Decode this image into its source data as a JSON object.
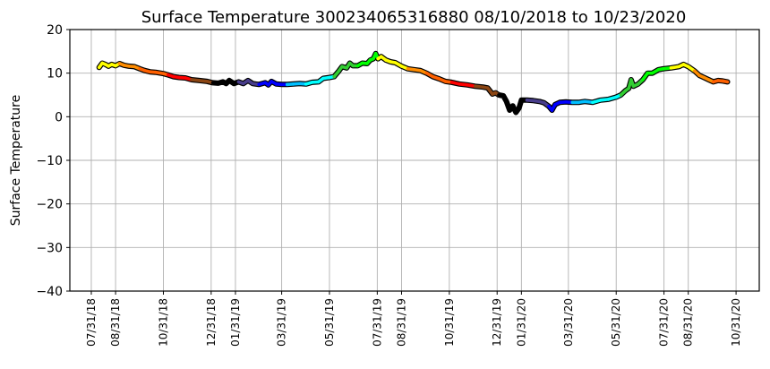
{
  "chart_data": {
    "type": "line",
    "title": "Surface Temperature 300234065316880  08/10/2018 to 10/23/2020",
    "xlabel": "",
    "ylabel": "Surface Temperature",
    "ylim": [
      -40,
      20
    ],
    "yticks": [
      -40,
      -30,
      -20,
      -10,
      0,
      10,
      20
    ],
    "x_units": "days since 07/31/18",
    "xlim": [
      -27.4,
      852.6
    ],
    "xticks": [
      {
        "day": 0,
        "label": "07/31/18"
      },
      {
        "day": 31,
        "label": "08/31/18"
      },
      {
        "day": 92,
        "label": "10/31/18"
      },
      {
        "day": 153,
        "label": "12/31/18"
      },
      {
        "day": 184,
        "label": "01/31/19"
      },
      {
        "day": 243,
        "label": "03/31/19"
      },
      {
        "day": 304,
        "label": "05/31/19"
      },
      {
        "day": 365,
        "label": "07/31/19"
      },
      {
        "day": 396,
        "label": "08/31/19"
      },
      {
        "day": 457,
        "label": "10/31/19"
      },
      {
        "day": 518,
        "label": "12/31/19"
      },
      {
        "day": 549,
        "label": "01/31/20"
      },
      {
        "day": 609,
        "label": "03/31/20"
      },
      {
        "day": 670,
        "label": "05/31/20"
      },
      {
        "day": 731,
        "label": "07/31/20"
      },
      {
        "day": 762,
        "label": "08/31/20"
      },
      {
        "day": 823,
        "label": "10/31/20"
      }
    ],
    "grid": true,
    "month_colors": {
      "1": "#000000",
      "2": "#483d8b",
      "3": "#0000ff",
      "4": "#00bfff",
      "5": "#00ffff",
      "6": "#32cd32",
      "7": "#00ff00",
      "8": "#ffff00",
      "9": "#ff8c00",
      "10": "#ff6000",
      "11": "#ff0000",
      "12": "#8b4513"
    },
    "points": [
      [
        10,
        11.3
      ],
      [
        14,
        12.3
      ],
      [
        18,
        12.0
      ],
      [
        22,
        11.6
      ],
      [
        26,
        12.0
      ],
      [
        31,
        11.7
      ],
      [
        36,
        12.2
      ],
      [
        42,
        11.8
      ],
      [
        48,
        11.6
      ],
      [
        55,
        11.5
      ],
      [
        62,
        11.0
      ],
      [
        68,
        10.6
      ],
      [
        75,
        10.3
      ],
      [
        82,
        10.2
      ],
      [
        92,
        9.9
      ],
      [
        98,
        9.6
      ],
      [
        105,
        9.2
      ],
      [
        112,
        9.0
      ],
      [
        120,
        8.9
      ],
      [
        128,
        8.5
      ],
      [
        138,
        8.3
      ],
      [
        148,
        8.1
      ],
      [
        155,
        7.8
      ],
      [
        162,
        7.7
      ],
      [
        168,
        8.0
      ],
      [
        172,
        7.6
      ],
      [
        176,
        8.3
      ],
      [
        182,
        7.6
      ],
      [
        188,
        8.0
      ],
      [
        194,
        7.6
      ],
      [
        200,
        8.3
      ],
      [
        206,
        7.6
      ],
      [
        214,
        7.4
      ],
      [
        222,
        7.8
      ],
      [
        226,
        7.3
      ],
      [
        230,
        8.1
      ],
      [
        236,
        7.5
      ],
      [
        243,
        7.4
      ],
      [
        250,
        7.4
      ],
      [
        258,
        7.5
      ],
      [
        266,
        7.6
      ],
      [
        274,
        7.5
      ],
      [
        282,
        7.9
      ],
      [
        290,
        8.0
      ],
      [
        296,
        8.8
      ],
      [
        304,
        9.0
      ],
      [
        310,
        9.2
      ],
      [
        316,
        10.5
      ],
      [
        320,
        11.5
      ],
      [
        326,
        11.2
      ],
      [
        330,
        12.3
      ],
      [
        334,
        11.7
      ],
      [
        340,
        11.7
      ],
      [
        346,
        12.3
      ],
      [
        352,
        12.2
      ],
      [
        356,
        13.0
      ],
      [
        360,
        13.3
      ],
      [
        363,
        14.5
      ],
      [
        366,
        13.3
      ],
      [
        370,
        13.8
      ],
      [
        376,
        13.0
      ],
      [
        382,
        12.6
      ],
      [
        388,
        12.4
      ],
      [
        396,
        11.6
      ],
      [
        404,
        11.0
      ],
      [
        412,
        10.8
      ],
      [
        420,
        10.6
      ],
      [
        428,
        10.0
      ],
      [
        436,
        9.2
      ],
      [
        444,
        8.7
      ],
      [
        452,
        8.1
      ],
      [
        460,
        7.9
      ],
      [
        470,
        7.5
      ],
      [
        480,
        7.3
      ],
      [
        490,
        7.0
      ],
      [
        500,
        6.8
      ],
      [
        506,
        6.6
      ],
      [
        512,
        5.2
      ],
      [
        516,
        5.5
      ],
      [
        520,
        5.0
      ],
      [
        526,
        4.8
      ],
      [
        530,
        3.5
      ],
      [
        534,
        1.5
      ],
      [
        538,
        2.5
      ],
      [
        542,
        1.0
      ],
      [
        546,
        2.0
      ],
      [
        549,
        3.8
      ],
      [
        556,
        3.8
      ],
      [
        564,
        3.7
      ],
      [
        572,
        3.5
      ],
      [
        578,
        3.2
      ],
      [
        584,
        2.4
      ],
      [
        588,
        1.5
      ],
      [
        592,
        2.8
      ],
      [
        598,
        3.3
      ],
      [
        606,
        3.4
      ],
      [
        614,
        3.3
      ],
      [
        622,
        3.3
      ],
      [
        630,
        3.5
      ],
      [
        640,
        3.3
      ],
      [
        650,
        3.8
      ],
      [
        660,
        4.0
      ],
      [
        670,
        4.5
      ],
      [
        676,
        5.0
      ],
      [
        682,
        6.0
      ],
      [
        686,
        6.5
      ],
      [
        689,
        8.5
      ],
      [
        692,
        7.0
      ],
      [
        698,
        7.5
      ],
      [
        704,
        8.5
      ],
      [
        710,
        10.0
      ],
      [
        716,
        10.0
      ],
      [
        724,
        10.8
      ],
      [
        730,
        11.0
      ],
      [
        740,
        11.2
      ],
      [
        750,
        11.5
      ],
      [
        756,
        12.0
      ],
      [
        762,
        11.5
      ],
      [
        770,
        10.5
      ],
      [
        776,
        9.5
      ],
      [
        782,
        9.0
      ],
      [
        788,
        8.5
      ],
      [
        794,
        8.0
      ],
      [
        800,
        8.3
      ],
      [
        806,
        8.2
      ],
      [
        812,
        8.0
      ]
    ]
  }
}
